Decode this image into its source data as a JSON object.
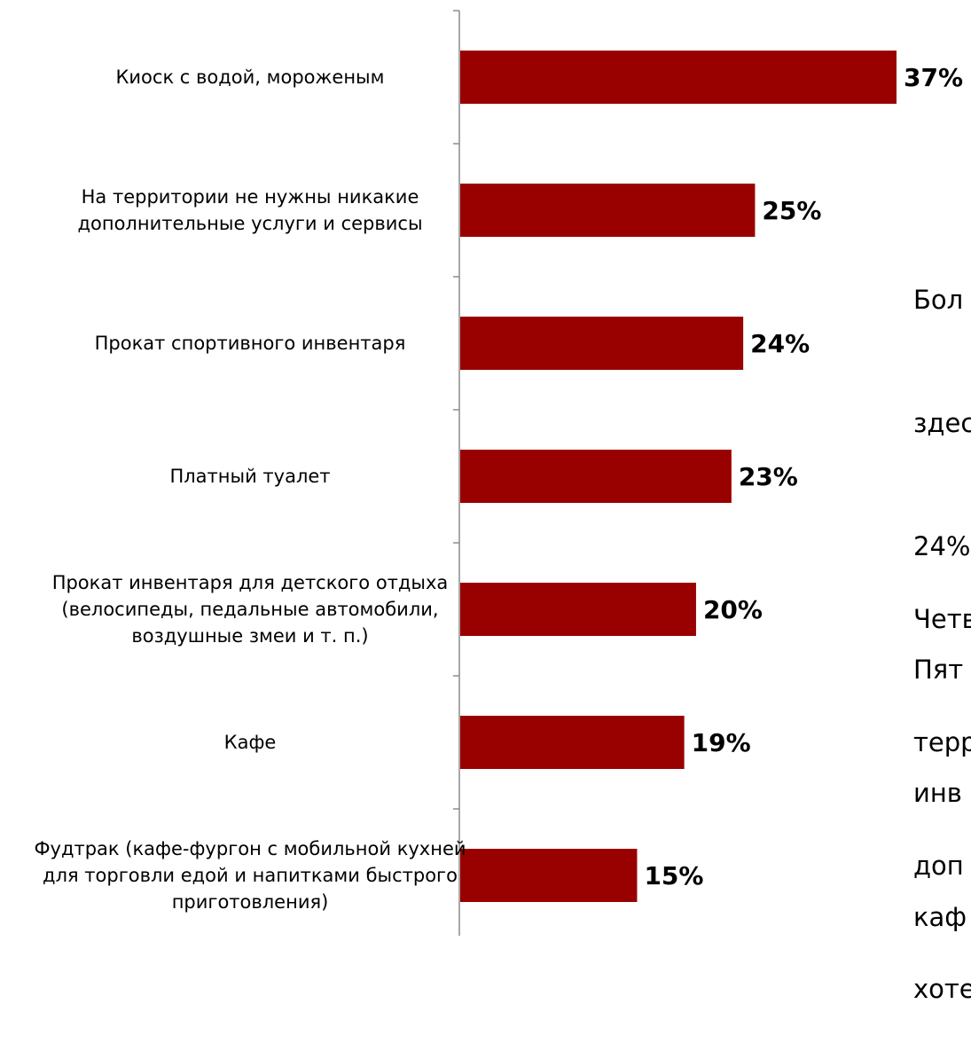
{
  "chart_data": {
    "type": "bar",
    "orientation": "horizontal",
    "categories": [
      [
        "Киоск с водой, мороженым"
      ],
      [
        "На территории не нужны никакие",
        "дополнительные услуги и сервисы"
      ],
      [
        "Прокат спортивного инвентаря"
      ],
      [
        "Платный туалет"
      ],
      [
        "Прокат инвентаря для детского отдыха",
        "(велосипеды, педальные автомобили,",
        "воздушные змеи и т. п.)"
      ],
      [
        "Кафе"
      ],
      [
        "Фудтрак (кафе-фургон с мобильной кухней",
        "для торговли едой и напитками быстрого",
        "приготовления)"
      ]
    ],
    "values": [
      37,
      25,
      24,
      23,
      20,
      19,
      15
    ],
    "value_labels": [
      "37%",
      "25%",
      "24%",
      "23%",
      "20%",
      "19%",
      "15%"
    ],
    "xlim": [
      0,
      37
    ],
    "bar_color": "#990000",
    "grid": false,
    "legend": "none"
  },
  "side_text": {
    "block1": [
      "Бол",
      "здес",
      "24%",
      "Пят",
      "инв",
      "каф"
    ],
    "block2": [
      "Четв",
      "терр",
      "доп",
      "хоте"
    ]
  }
}
